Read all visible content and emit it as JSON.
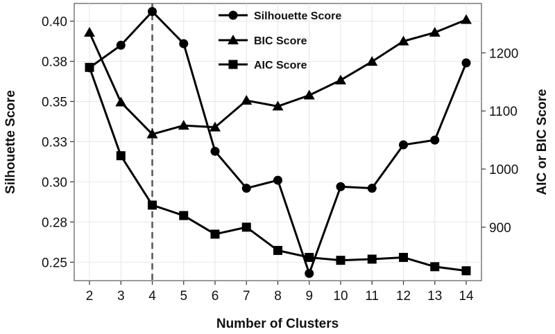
{
  "chart_data": {
    "type": "line",
    "x": [
      2,
      3,
      4,
      5,
      6,
      7,
      8,
      9,
      10,
      11,
      12,
      13,
      14
    ],
    "xlabel": "Number of Clusters",
    "y_left_label": "Silhouette Score",
    "y_right_label": "AIC or BIC Score",
    "x_ticks": [
      "2",
      "3",
      "4",
      "5",
      "6",
      "7",
      "8",
      "9",
      "10",
      "11",
      "12",
      "13",
      "14"
    ],
    "y_left_ticks": [
      {
        "value": 0.25,
        "label": "0.25"
      },
      {
        "value": 0.275,
        "label": "0.28"
      },
      {
        "value": 0.3,
        "label": "0.30"
      },
      {
        "value": 0.325,
        "label": "0.33"
      },
      {
        "value": 0.35,
        "label": "0.35"
      },
      {
        "value": 0.375,
        "label": "0.38"
      },
      {
        "value": 0.4,
        "label": "0.40"
      }
    ],
    "y_right_ticks": [
      {
        "value": 900,
        "label": "900"
      },
      {
        "value": 1000,
        "label": "1000"
      },
      {
        "value": 1100,
        "label": "1100"
      },
      {
        "value": 1200,
        "label": "1200"
      }
    ],
    "y_left_lim": [
      0.2385,
      0.411
    ],
    "y_right_lim": [
      808,
      1285
    ],
    "reference_line_x": 4,
    "legend_position": "top-center",
    "grid": true,
    "series": [
      {
        "name": "Silhouette Score",
        "axis": "left",
        "marker": "circle",
        "values": [
          0.371,
          0.385,
          0.406,
          0.386,
          0.319,
          0.296,
          0.301,
          0.243,
          0.297,
          0.296,
          0.323,
          0.326,
          0.374
        ]
      },
      {
        "name": "BIC Score",
        "axis": "right",
        "marker": "triangle",
        "values": [
          1235,
          1115,
          1060,
          1075,
          1072,
          1118,
          1108,
          1127,
          1153,
          1185,
          1220,
          1235,
          1257
        ]
      },
      {
        "name": "AIC Score",
        "axis": "right",
        "marker": "square",
        "values": [
          1175,
          1023,
          938,
          920,
          888,
          900,
          860,
          848,
          843,
          845,
          848,
          832,
          825
        ]
      }
    ]
  }
}
